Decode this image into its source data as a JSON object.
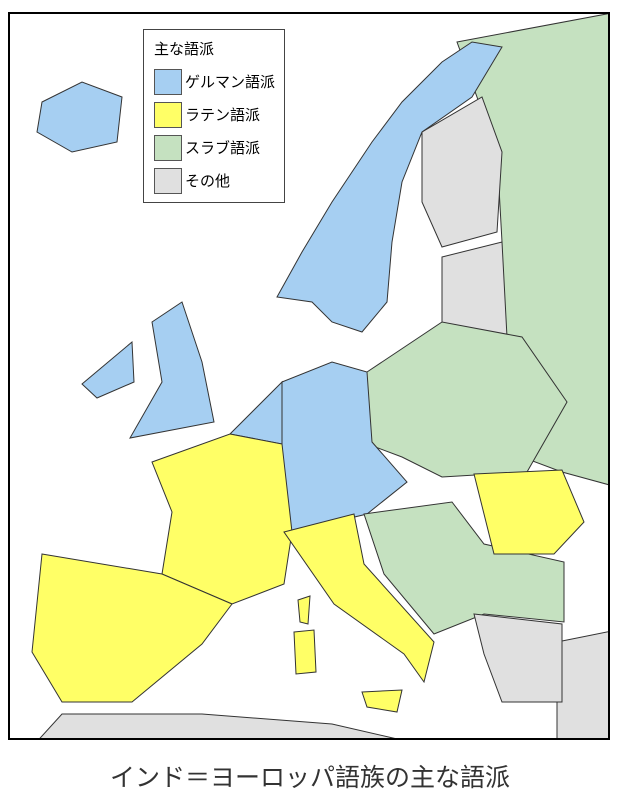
{
  "legend": {
    "title": "主な語派",
    "items": [
      {
        "label": "ゲルマン語派",
        "color": "#a6cff2"
      },
      {
        "label": "ラテン語派",
        "color": "#ffff66"
      },
      {
        "label": "スラブ語派",
        "color": "#c5e1c0"
      },
      {
        "label": "その他",
        "color": "#e0e0e0"
      }
    ]
  },
  "caption": "インド＝ヨーロッパ語族の主な語派"
}
